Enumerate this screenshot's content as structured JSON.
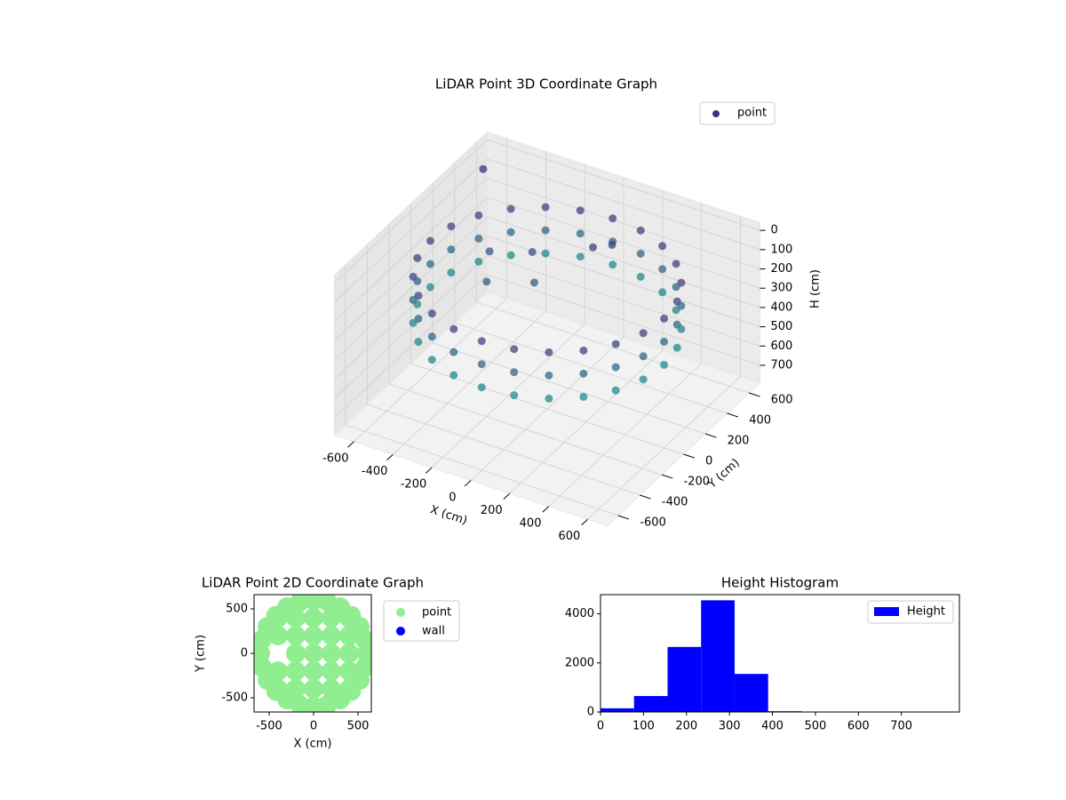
{
  "chart_data": [
    {
      "type": "scatter3d",
      "title": "LiDAR Point 3D Coordinate Graph",
      "xlabel": "X (cm)",
      "ylabel": "Y (cm)",
      "zlabel": "H (cm)",
      "xlim": [
        -700,
        700
      ],
      "ylim": [
        -700,
        700
      ],
      "zlim": [
        -40,
        790
      ],
      "z_inverted": true,
      "xticks": [
        -600,
        -400,
        -200,
        0,
        200,
        400,
        600
      ],
      "yticks": [
        -600,
        -400,
        -200,
        0,
        200,
        400,
        600
      ],
      "zticks": [
        0,
        100,
        200,
        300,
        400,
        500,
        600,
        700
      ],
      "colormap": [
        "#472d7b",
        "#23898e"
      ],
      "legend": "upper right",
      "series": [
        {
          "name": "point",
          "color": "#472d7b",
          "x": [
            600,
            580,
            520,
            424,
            300,
            155,
            0,
            -155,
            -300,
            -424,
            -520,
            -580,
            -600,
            -580,
            -520,
            -424,
            -300,
            -155,
            0,
            155,
            300,
            424,
            520,
            580,
            600,
            580,
            520,
            424,
            300,
            155,
            0,
            -155,
            -300,
            -424,
            -520,
            -580,
            -600,
            -580,
            -520,
            -424,
            -300,
            -155,
            0,
            155,
            300,
            424,
            520,
            580,
            600,
            580,
            520,
            424,
            300,
            155,
            0,
            -155,
            -300,
            -424,
            -520,
            -580,
            -600,
            -580,
            -520,
            -424,
            -300,
            -155,
            0,
            155,
            300,
            424,
            520,
            580,
            -380,
            -300,
            -200,
            -100,
            50,
            120,
            -620
          ],
          "y": [
            0,
            155,
            300,
            424,
            520,
            580,
            600,
            580,
            520,
            424,
            300,
            155,
            0,
            -155,
            -300,
            -424,
            -520,
            -580,
            -600,
            -580,
            -520,
            -424,
            -300,
            -155,
            0,
            155,
            300,
            424,
            520,
            580,
            600,
            580,
            520,
            424,
            300,
            155,
            0,
            -155,
            -300,
            -424,
            -520,
            -580,
            -600,
            -580,
            -520,
            -424,
            -300,
            -155,
            0,
            155,
            300,
            424,
            520,
            580,
            600,
            580,
            520,
            424,
            300,
            155,
            0,
            -155,
            -300,
            -424,
            -520,
            -580,
            -600,
            -580,
            -520,
            -424,
            -300,
            -155,
            150,
            -20,
            220,
            60,
            330,
            380,
            520
          ],
          "h": [
            120,
            120,
            120,
            120,
            120,
            120,
            120,
            120,
            120,
            120,
            120,
            120,
            120,
            120,
            120,
            120,
            120,
            120,
            120,
            120,
            120,
            120,
            120,
            120,
            240,
            240,
            240,
            240,
            240,
            240,
            240,
            240,
            240,
            240,
            240,
            240,
            240,
            240,
            240,
            240,
            240,
            240,
            240,
            240,
            240,
            240,
            240,
            240,
            360,
            360,
            360,
            360,
            360,
            360,
            360,
            360,
            360,
            360,
            360,
            360,
            360,
            360,
            360,
            360,
            360,
            360,
            360,
            360,
            360,
            360,
            360,
            360,
            180,
            220,
            160,
            200,
            110,
            100,
            30
          ]
        }
      ]
    },
    {
      "type": "scatter",
      "title": "LiDAR Point 2D Coordinate Graph",
      "xlabel": "X (cm)",
      "ylabel": "Y (cm)",
      "xlim": [
        -670,
        650
      ],
      "ylim": [
        -660,
        660
      ],
      "xticks": [
        -500,
        0,
        500
      ],
      "yticks": [
        -500,
        0,
        500
      ],
      "legend": "outside right",
      "series": [
        {
          "name": "point",
          "color": "#90ee90",
          "x": [
            600,
            580,
            520,
            424,
            300,
            155,
            0,
            -155,
            -300,
            -424,
            -520,
            -580,
            -600,
            -580,
            -520,
            -424,
            -300,
            -155,
            0,
            155,
            300,
            424,
            520,
            580,
            0,
            0,
            0,
            0,
            0,
            0,
            0,
            200,
            200,
            200,
            200,
            200,
            -200,
            -200,
            -200,
            -200,
            -200,
            400,
            400,
            400,
            400,
            400,
            -400,
            -400,
            -400,
            -400,
            600,
            -600
          ],
          "y": [
            0,
            155,
            300,
            424,
            520,
            580,
            600,
            580,
            520,
            424,
            300,
            155,
            0,
            -155,
            -300,
            -424,
            -520,
            -580,
            -600,
            -580,
            -520,
            -424,
            -300,
            -155,
            -600,
            -400,
            -200,
            0,
            200,
            400,
            600,
            -400,
            -200,
            0,
            200,
            400,
            -400,
            -200,
            0,
            200,
            400,
            -400,
            -200,
            0,
            200,
            400,
            -400,
            -200,
            200,
            400,
            0,
            0
          ]
        },
        {
          "name": "wall",
          "color": "#0000ff",
          "x": [],
          "y": []
        }
      ]
    },
    {
      "type": "histogram",
      "title": "Height Histogram",
      "xlim": [
        0,
        835
      ],
      "ylim": [
        0,
        4780
      ],
      "xticks": [
        0,
        100,
        200,
        300,
        400,
        500,
        600,
        700
      ],
      "yticks": [
        0,
        2000,
        4000
      ],
      "legend": "upper right",
      "bins": [
        0,
        78,
        156,
        234,
        312,
        390,
        468,
        546,
        624,
        702,
        780
      ],
      "series": [
        {
          "name": "Height",
          "color": "#0000ff",
          "values": [
            150,
            650,
            2650,
            4550,
            1550,
            30,
            4,
            2,
            1,
            1
          ]
        }
      ]
    }
  ]
}
